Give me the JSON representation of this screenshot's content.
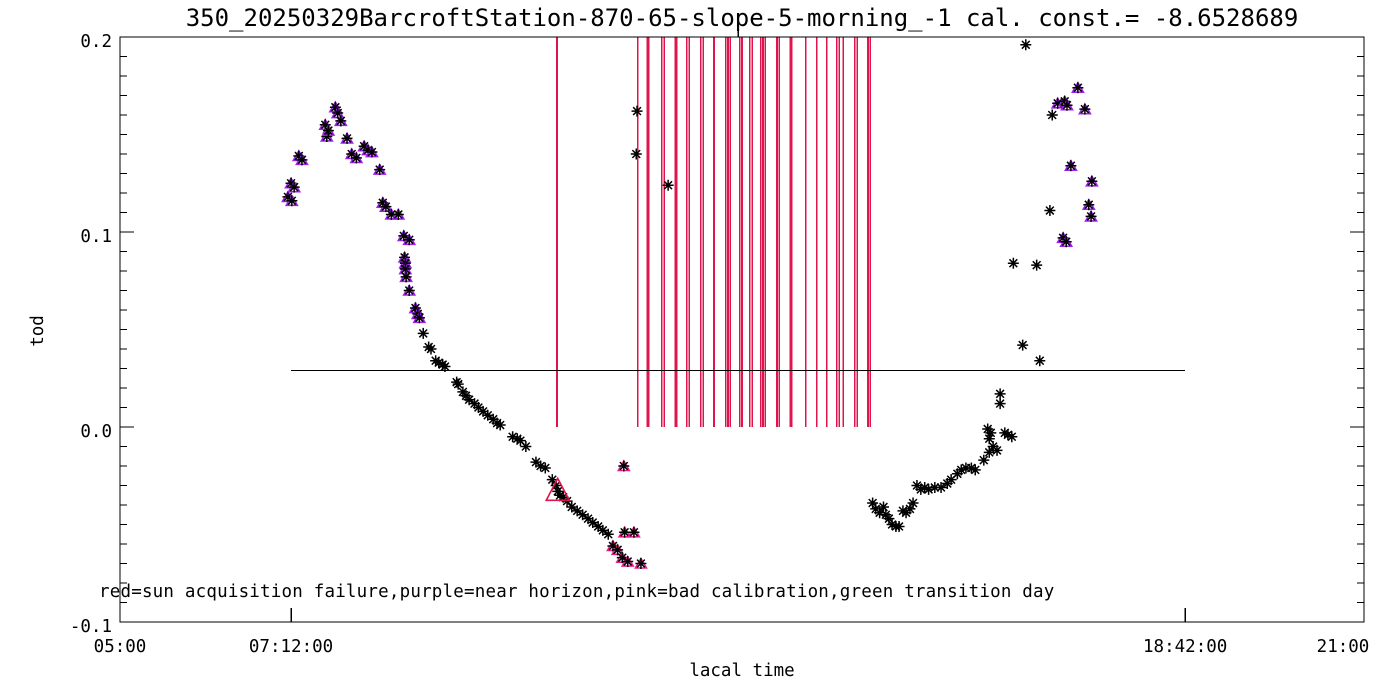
{
  "title": "350_20250329BarcroftStation-870-65-slope-5-morning_-1 cal. const.= -8.6528689",
  "colors": {
    "background": "#ffffff",
    "axis": "#000000",
    "marker_black": "#000000",
    "failure_red": "#e0144c",
    "near_horizon_purple": "#a020f0",
    "bad_calibration_pink": "#e8208e"
  },
  "chart_data": {
    "type": "scatter",
    "title": "350_20250329BarcroftStation-870-65-slope-5-morning_-1 cal. const.= -8.6528689",
    "xlabel": "lacal time",
    "ylabel": "tod",
    "legend": "red=sun acquisition failure,purple=near horizon,pink=bad calibration,green transition day",
    "xlim_hours": [
      5.0,
      21.0
    ],
    "ylim": [
      -0.1,
      0.2
    ],
    "grid": false,
    "x_ticks": [
      {
        "hours": 5.0,
        "label": "05:00"
      },
      {
        "hours": 7.2,
        "label": "07:12:00"
      },
      {
        "hours": 18.7,
        "label": "18:42:00"
      },
      {
        "hours": 21.0,
        "label": "21:00"
      }
    ],
    "top_tick_hours": [
      12.95
    ],
    "y_ticks": [
      {
        "value": 0.2,
        "label": "0.2"
      },
      {
        "value": 0.1,
        "label": "0.1"
      },
      {
        "value": 0.0,
        "label": "0.0"
      },
      {
        "value": -0.1,
        "label": "-0.1"
      }
    ],
    "y_minor_step": 0.01,
    "threshold_line": {
      "y": 0.029,
      "x_start_hours": 7.2,
      "x_end_hours": 18.7,
      "color": "#000000"
    },
    "failure_lines_y_range": [
      0.0,
      0.2
    ],
    "failure_lines_hours": [
      10.62,
      11.66,
      11.78,
      11.8,
      11.97,
      12.0,
      12.14,
      12.16,
      12.29,
      12.32,
      12.47,
      12.5,
      12.64,
      12.79,
      12.82,
      12.85,
      12.97,
      13.0,
      13.1,
      13.13,
      13.24,
      13.27,
      13.3,
      13.45,
      13.48,
      13.62,
      13.64,
      13.82,
      13.96,
      14.09,
      14.22,
      14.25,
      14.3,
      14.45,
      14.48,
      14.62,
      14.65
    ],
    "series": [
      {
        "name": "tod-measurements",
        "marker": "asterisk",
        "color": "#000000",
        "points": [
          [
            8.9,
            0.048
          ],
          [
            8.97,
            0.041
          ],
          [
            9.0,
            0.04
          ],
          [
            9.06,
            0.034
          ],
          [
            9.1,
            0.033
          ],
          [
            9.15,
            0.032
          ],
          [
            9.18,
            0.031
          ],
          [
            9.33,
            0.023
          ],
          [
            9.35,
            0.022
          ],
          [
            9.41,
            0.018
          ],
          [
            9.45,
            0.016
          ],
          [
            9.49,
            0.014
          ],
          [
            9.56,
            0.012
          ],
          [
            9.61,
            0.01
          ],
          [
            9.67,
            0.008
          ],
          [
            9.73,
            0.006
          ],
          [
            9.8,
            0.004
          ],
          [
            9.85,
            0.002
          ],
          [
            9.89,
            0.001
          ],
          [
            10.05,
            -0.005
          ],
          [
            10.11,
            -0.006
          ],
          [
            10.15,
            -0.007
          ],
          [
            10.22,
            -0.01
          ],
          [
            10.35,
            -0.018
          ],
          [
            10.41,
            -0.02
          ],
          [
            10.47,
            -0.021
          ],
          [
            10.56,
            -0.027
          ],
          [
            10.61,
            -0.03
          ],
          [
            10.63,
            -0.033
          ],
          [
            10.66,
            -0.035
          ],
          [
            10.7,
            -0.036
          ],
          [
            10.75,
            -0.038
          ],
          [
            10.81,
            -0.041
          ],
          [
            10.88,
            -0.043
          ],
          [
            10.95,
            -0.045
          ],
          [
            11.02,
            -0.047
          ],
          [
            11.08,
            -0.049
          ],
          [
            11.15,
            -0.051
          ],
          [
            11.21,
            -0.053
          ],
          [
            11.28,
            -0.055
          ],
          [
            11.65,
            0.162
          ],
          [
            11.64,
            0.14
          ],
          [
            12.05,
            0.124
          ],
          [
            14.68,
            -0.039
          ],
          [
            14.72,
            -0.042
          ],
          [
            14.77,
            -0.044
          ],
          [
            14.82,
            -0.041
          ],
          [
            14.85,
            -0.045
          ],
          [
            14.89,
            -0.047
          ],
          [
            14.93,
            -0.05
          ],
          [
            14.98,
            -0.051
          ],
          [
            15.02,
            -0.051
          ],
          [
            15.07,
            -0.043
          ],
          [
            15.11,
            -0.044
          ],
          [
            15.16,
            -0.042
          ],
          [
            15.2,
            -0.039
          ],
          [
            15.25,
            -0.03
          ],
          [
            15.3,
            -0.032
          ],
          [
            15.35,
            -0.031
          ],
          [
            15.4,
            -0.032
          ],
          [
            15.48,
            -0.031
          ],
          [
            15.56,
            -0.031
          ],
          [
            15.64,
            -0.029
          ],
          [
            15.69,
            -0.027
          ],
          [
            15.77,
            -0.024
          ],
          [
            15.82,
            -0.022
          ],
          [
            15.88,
            -0.021
          ],
          [
            15.95,
            -0.021
          ],
          [
            16.0,
            -0.022
          ],
          [
            16.11,
            -0.017
          ],
          [
            16.18,
            -0.013
          ],
          [
            16.23,
            -0.01
          ],
          [
            16.28,
            -0.012
          ],
          [
            16.16,
            -0.001
          ],
          [
            16.2,
            -0.003
          ],
          [
            16.18,
            -0.006
          ],
          [
            16.38,
            -0.003
          ],
          [
            16.42,
            -0.004
          ],
          [
            16.47,
            -0.005
          ],
          [
            16.32,
            0.017
          ],
          [
            16.32,
            0.012
          ],
          [
            16.61,
            0.042
          ],
          [
            16.83,
            0.034
          ],
          [
            16.49,
            0.084
          ],
          [
            16.79,
            0.083
          ],
          [
            16.96,
            0.111
          ],
          [
            16.99,
            0.16
          ],
          [
            16.65,
            0.196
          ]
        ]
      },
      {
        "name": "near-horizon",
        "marker": "triangle+asterisk",
        "color": "#000000",
        "triangle_color": "#a020f0",
        "points": [
          [
            7.16,
            0.118
          ],
          [
            7.2,
            0.125
          ],
          [
            7.21,
            0.116
          ],
          [
            7.24,
            0.123
          ],
          [
            7.3,
            0.139
          ],
          [
            7.34,
            0.137
          ],
          [
            7.64,
            0.155
          ],
          [
            7.66,
            0.149
          ],
          [
            7.68,
            0.152
          ],
          [
            7.77,
            0.164
          ],
          [
            7.8,
            0.161
          ],
          [
            7.84,
            0.157
          ],
          [
            7.92,
            0.148
          ],
          [
            7.98,
            0.14
          ],
          [
            8.04,
            0.138
          ],
          [
            8.14,
            0.144
          ],
          [
            8.19,
            0.142
          ],
          [
            8.24,
            0.141
          ],
          [
            8.34,
            0.132
          ],
          [
            8.38,
            0.115
          ],
          [
            8.42,
            0.113
          ],
          [
            8.49,
            0.109
          ],
          [
            8.58,
            0.109
          ],
          [
            8.65,
            0.098
          ],
          [
            8.72,
            0.096
          ],
          [
            8.66,
            0.087
          ],
          [
            8.67,
            0.084
          ],
          [
            8.67,
            0.081
          ],
          [
            8.68,
            0.077
          ],
          [
            8.72,
            0.07
          ],
          [
            8.8,
            0.061
          ],
          [
            8.83,
            0.058
          ],
          [
            8.85,
            0.056
          ],
          [
            17.06,
            0.166
          ],
          [
            17.15,
            0.167
          ],
          [
            17.18,
            0.165
          ],
          [
            17.32,
            0.174
          ],
          [
            17.41,
            0.163
          ],
          [
            17.23,
            0.134
          ],
          [
            17.5,
            0.126
          ],
          [
            17.46,
            0.114
          ],
          [
            17.49,
            0.108
          ],
          [
            17.13,
            0.097
          ],
          [
            17.17,
            0.095
          ]
        ]
      },
      {
        "name": "bad-calibration",
        "marker": "triangle+asterisk",
        "color": "#000000",
        "triangle_color": "#e8208e",
        "points": [
          [
            11.34,
            -0.061
          ],
          [
            11.4,
            -0.063
          ],
          [
            11.49,
            -0.054
          ],
          [
            11.61,
            -0.054
          ],
          [
            11.46,
            -0.067
          ],
          [
            11.53,
            -0.069
          ],
          [
            11.7,
            -0.07
          ],
          [
            11.48,
            -0.02
          ]
        ]
      },
      {
        "name": "sun-acquisition-failure",
        "marker": "large-triangle",
        "color": "#e0144c",
        "points": [
          [
            10.63,
            -0.033
          ]
        ]
      }
    ]
  }
}
